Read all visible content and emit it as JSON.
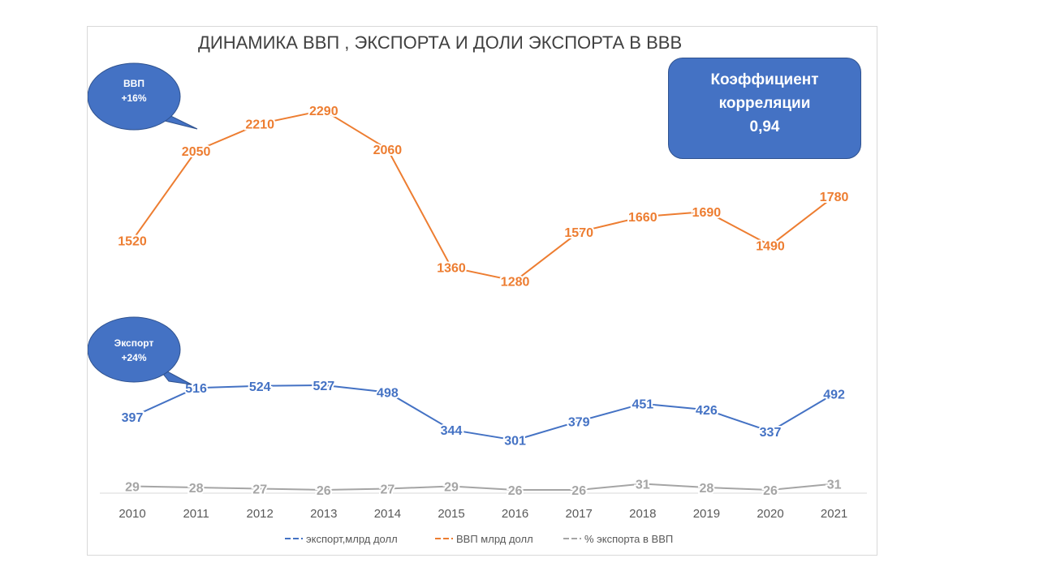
{
  "chart_data": {
    "type": "line",
    "title": "ДИНАМИКА ВВП , ЭКСПОРТА И ДОЛИ ЭКСПОРТА В ВВВ",
    "categories": [
      "2010",
      "2011",
      "2012",
      "2013",
      "2014",
      "2015",
      "2016",
      "2017",
      "2018",
      "2019",
      "2020",
      "2021"
    ],
    "series": [
      {
        "name": "экспорт,млрд долл",
        "color": "#4472c4",
        "values": [
          397,
          516,
          524,
          527,
          498,
          344,
          301,
          379,
          451,
          426,
          337,
          492
        ]
      },
      {
        "name": "ВВП млрд долл",
        "color": "#ed7d31",
        "values": [
          1520,
          2050,
          2210,
          2290,
          2060,
          1360,
          1280,
          1570,
          1660,
          1690,
          1490,
          1780
        ]
      },
      {
        "name": "% экспорта  в ВВП",
        "color": "#a5a5a5",
        "values": [
          29,
          28,
          27,
          26,
          27,
          29,
          26,
          26,
          31,
          28,
          26,
          31
        ]
      }
    ],
    "annotations": {
      "gdp_callout": {
        "line1": "ВВП",
        "line2": "+16%"
      },
      "export_callout": {
        "line1": "Экспорт",
        "line2": "+24%"
      }
    }
  },
  "correlation": {
    "line1": "Коэффициент",
    "line2": "корреляции",
    "value": "0,94"
  }
}
